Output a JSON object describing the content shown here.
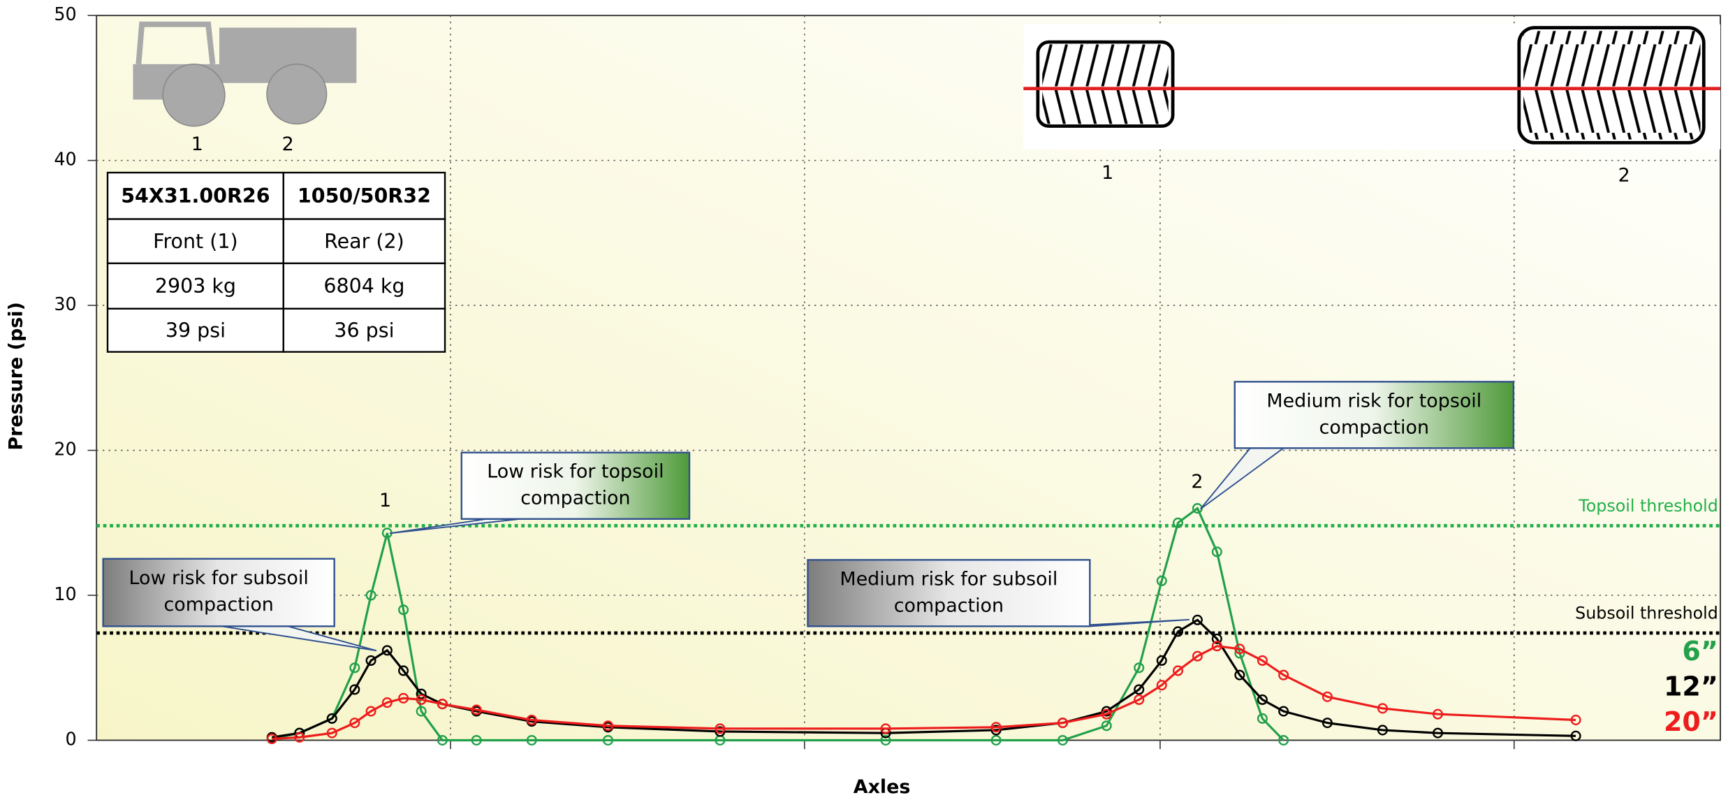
{
  "chart_data": {
    "type": "line",
    "ylabel": "Pressure (psi)",
    "xlabel": "Axles",
    "ylim": [
      0,
      50
    ],
    "yticks": [
      0,
      10,
      20,
      30,
      40,
      50
    ],
    "xlim": [
      0,
      100
    ],
    "xticks": [
      21.8,
      43.6,
      65.5,
      87.3
    ],
    "grid": true,
    "legend": "right",
    "x": [
      10.8,
      12.5,
      14.5,
      15.9,
      16.9,
      17.9,
      18.9,
      20.0,
      21.3,
      23.4,
      26.8,
      31.5,
      38.4,
      48.6,
      55.4,
      59.5,
      62.2,
      64.2,
      65.6,
      66.6,
      67.8,
      69.0,
      70.4,
      71.8,
      73.1,
      75.8,
      79.2,
      82.6,
      91.1
    ],
    "series": [
      {
        "name": "6”",
        "color": "#22a04a",
        "values": [
          0.1,
          0.5,
          1.5,
          5,
          10,
          14.3,
          9,
          2,
          0,
          0,
          0,
          0,
          0,
          0,
          0,
          0,
          1,
          5,
          11,
          15,
          16,
          13,
          6,
          1.5,
          0,
          null,
          null,
          null,
          null
        ]
      },
      {
        "name": "12”",
        "color": "#000000",
        "values": [
          0.2,
          0.5,
          1.5,
          3.5,
          5.5,
          6.2,
          4.8,
          3.2,
          2.5,
          2,
          1.3,
          0.9,
          0.6,
          0.5,
          0.7,
          1.2,
          2,
          3.5,
          5.5,
          7.5,
          8.3,
          7,
          4.5,
          2.8,
          2,
          1.2,
          0.7,
          0.5,
          0.3
        ]
      },
      {
        "name": "20”",
        "color": "#ee1c1c",
        "values": [
          0.1,
          0.2,
          0.5,
          1.2,
          2,
          2.6,
          2.9,
          2.8,
          2.5,
          2.1,
          1.4,
          1,
          0.8,
          0.8,
          0.9,
          1.2,
          1.8,
          2.8,
          3.8,
          4.8,
          5.8,
          6.5,
          6.3,
          5.5,
          4.5,
          3,
          2.2,
          1.8,
          1.4
        ]
      }
    ],
    "thresholds": [
      {
        "name": "Topsoil threshold",
        "value": 14.8,
        "color": "#22b04a"
      },
      {
        "name": "Subsoil threshold",
        "value": 7.4,
        "color": "#000000"
      }
    ],
    "annotations": [
      {
        "lines": [
          "Low risk for topsoil",
          "compaction"
        ],
        "kind": "topsoil"
      },
      {
        "lines": [
          "Low risk for subsoil",
          "compaction"
        ],
        "kind": "subsoil"
      },
      {
        "lines": [
          "Medium risk for subsoil",
          "compaction"
        ],
        "kind": "subsoil"
      },
      {
        "lines": [
          "Medium risk for topsoil",
          "compaction"
        ],
        "kind": "topsoil"
      }
    ],
    "peak_labels": [
      "1",
      "2"
    ],
    "tractor_labels": [
      "1",
      "2"
    ],
    "tire_labels": [
      "1",
      "2"
    ],
    "table": {
      "rows": [
        [
          "54X31.00R26",
          "1050/50R32"
        ],
        [
          "Front (1)",
          "Rear (2)"
        ],
        [
          "2903 kg",
          "6804 kg"
        ],
        [
          "39 psi",
          "36 psi"
        ]
      ]
    }
  }
}
